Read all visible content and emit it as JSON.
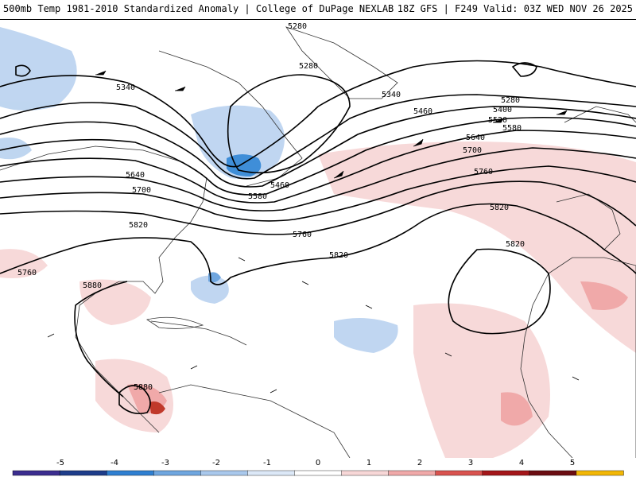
{
  "header": {
    "title_left": "500mb Temp 1981-2010 Standardized Anomaly | College of DuPage NEXLAB",
    "title_right": "18Z GFS | F249 Valid: 03Z WED NOV 26 2025"
  },
  "contours": {
    "color": "#000000",
    "labels": [
      "5280",
      "5280",
      "5280",
      "5340",
      "5340",
      "5400",
      "5460",
      "5460",
      "5520",
      "5580",
      "5580",
      "5640",
      "5640",
      "5700",
      "5700",
      "5760",
      "5760",
      "5760",
      "5820",
      "5820",
      "5820",
      "5820",
      "5880",
      "5880"
    ]
  },
  "colorbar": {
    "ticks": [
      "-5",
      "-4",
      "-3",
      "-2",
      "-1",
      "0",
      "1",
      "2",
      "3",
      "4",
      "5"
    ],
    "colors": [
      "#3b2d8f",
      "#1e3d8a",
      "#2f7fd1",
      "#6fa6df",
      "#a9c8ec",
      "#dce8f7",
      "#ffffff",
      "#f7d7d7",
      "#f0a9a9",
      "#d9534f",
      "#a4161a",
      "#6b0d12",
      "#f2b705"
    ]
  }
}
